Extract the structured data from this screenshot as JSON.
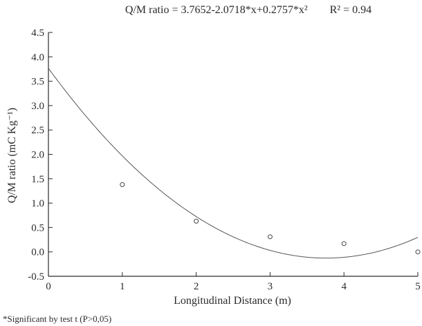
{
  "chart_data": {
    "type": "scatter",
    "title_equation": "Q/M ratio = 3.7652-2.0718*x+0.2757*x²",
    "title_r2": "R² = 0.94",
    "xlabel": "Longitudinal Distance (m)",
    "ylabel": "Q/M ratio (mC Kg⁻¹)",
    "xlim": [
      0,
      5
    ],
    "ylim": [
      -0.5,
      4.5
    ],
    "xticks": [
      "0",
      "1",
      "2",
      "3",
      "4",
      "5"
    ],
    "yticks": [
      "-0.5",
      "0.0",
      "0.5",
      "1.0",
      "1.5",
      "2.0",
      "2.5",
      "3.0",
      "3.5",
      "4.0",
      "4.5"
    ],
    "grid": false,
    "series": [
      {
        "type": "scatter",
        "x": [
          1,
          2,
          3,
          4,
          5
        ],
        "y": [
          1.38,
          0.63,
          0.31,
          0.17,
          0.0
        ]
      }
    ],
    "fit": {
      "type": "polynomial",
      "coefficients": [
        3.7652,
        -2.0718,
        0.2757
      ]
    }
  },
  "footnote": "*Significant by test t (P>0,05)",
  "colors": {
    "axis": "#2a2a2a",
    "curve": "#555555",
    "marker": "#444444"
  }
}
